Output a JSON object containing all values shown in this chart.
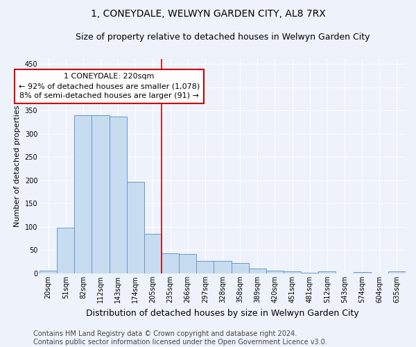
{
  "title": "1, CONEYDALE, WELWYN GARDEN CITY, AL8 7RX",
  "subtitle": "Size of property relative to detached houses in Welwyn Garden City",
  "xlabel": "Distribution of detached houses by size in Welwyn Garden City",
  "ylabel": "Number of detached properties",
  "categories": [
    "20sqm",
    "51sqm",
    "82sqm",
    "112sqm",
    "143sqm",
    "174sqm",
    "205sqm",
    "235sqm",
    "266sqm",
    "297sqm",
    "328sqm",
    "358sqm",
    "389sqm",
    "420sqm",
    "451sqm",
    "481sqm",
    "512sqm",
    "543sqm",
    "574sqm",
    "604sqm",
    "635sqm"
  ],
  "values": [
    6,
    99,
    340,
    339,
    337,
    197,
    85,
    43,
    42,
    27,
    27,
    23,
    10,
    6,
    4,
    1,
    5,
    0,
    3,
    0,
    4
  ],
  "bar_color": "#c8dcf0",
  "bar_edge_color": "#6699cc",
  "vline_x_index": 6,
  "annotation_line1": "1 CONEYDALE: 220sqm",
  "annotation_line2": "← 92% of detached houses are smaller (1,078)",
  "annotation_line3": "8% of semi-detached houses are larger (91) →",
  "annotation_box_color": "#ffffff",
  "annotation_box_edge_color": "#cc0000",
  "footer_text": "Contains HM Land Registry data © Crown copyright and database right 2024.\nContains public sector information licensed under the Open Government Licence v3.0.",
  "ylim": [
    0,
    460
  ],
  "yticks": [
    0,
    50,
    100,
    150,
    200,
    250,
    300,
    350,
    400,
    450
  ],
  "background_color": "#eef2fb",
  "grid_color": "#ffffff",
  "title_fontsize": 10,
  "subtitle_fontsize": 9,
  "xlabel_fontsize": 9,
  "ylabel_fontsize": 8,
  "tick_fontsize": 7,
  "annotation_fontsize": 8,
  "footer_fontsize": 7
}
